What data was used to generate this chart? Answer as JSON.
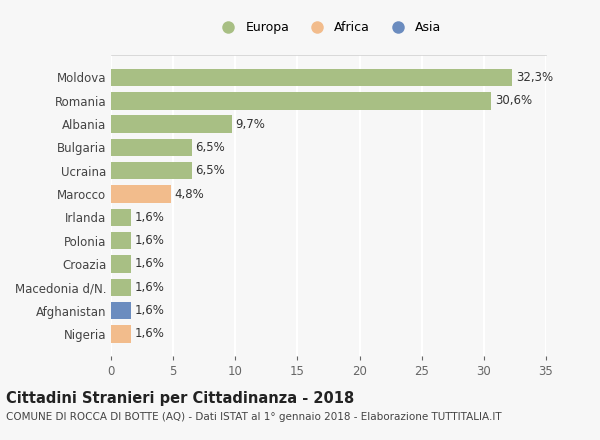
{
  "categories": [
    "Nigeria",
    "Afghanistan",
    "Macedonia d/N.",
    "Croazia",
    "Polonia",
    "Irlanda",
    "Marocco",
    "Ucraina",
    "Bulgaria",
    "Albania",
    "Romania",
    "Moldova"
  ],
  "values": [
    1.6,
    1.6,
    1.6,
    1.6,
    1.6,
    1.6,
    4.8,
    6.5,
    6.5,
    9.7,
    30.6,
    32.3
  ],
  "labels": [
    "1,6%",
    "1,6%",
    "1,6%",
    "1,6%",
    "1,6%",
    "1,6%",
    "4,8%",
    "6,5%",
    "6,5%",
    "9,7%",
    "30,6%",
    "32,3%"
  ],
  "colors": [
    "#f2bc8c",
    "#6b8cbf",
    "#a8bf84",
    "#a8bf84",
    "#a8bf84",
    "#a8bf84",
    "#f2bc8c",
    "#a8bf84",
    "#a8bf84",
    "#a8bf84",
    "#a8bf84",
    "#a8bf84"
  ],
  "continent_colors": {
    "Europa": "#a8bf84",
    "Africa": "#f2bc8c",
    "Asia": "#6b8cbf"
  },
  "legend_labels": [
    "Europa",
    "Africa",
    "Asia"
  ],
  "xlim": [
    0,
    35
  ],
  "xticks": [
    0,
    5,
    10,
    15,
    20,
    25,
    30,
    35
  ],
  "title": "Cittadini Stranieri per Cittadinanza - 2018",
  "subtitle": "COMUNE DI ROCCA DI BOTTE (AQ) - Dati ISTAT al 1° gennaio 2018 - Elaborazione TUTTITALIA.IT",
  "bg_color": "#f7f7f7",
  "plot_bg_color": "#f7f7f7",
  "bar_height": 0.75,
  "grid_color": "#ffffff",
  "label_fontsize": 8.5,
  "tick_fontsize": 8.5,
  "title_fontsize": 10.5,
  "subtitle_fontsize": 7.5
}
